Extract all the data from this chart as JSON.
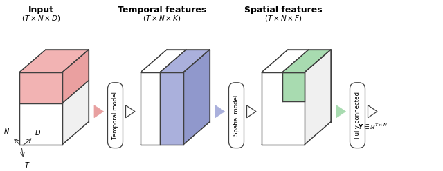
{
  "title_input": "\\textbf{Input}",
  "title_temporal": "\\textbf{Temporal features}",
  "title_spatial": "\\textbf{Spatial features}",
  "subtitle_input": "$(T \\times N \\times D)$",
  "subtitle_temporal": "$(T \\times N \\times K)$",
  "subtitle_spatial": "$(T \\times N \\times F)$",
  "label_temporal_model": "Temporal model",
  "label_spatial_model": "Spatial model",
  "label_fully_connected": "Fully connected",
  "label_output": "$\\mathbf{Y} \\in \\mathbb{R}^{T \\times N}$",
  "color_input_pink": "#f2b3b3",
  "color_input_pink_dark": "#eaa0a0",
  "color_temporal_blue": "#aab0dc",
  "color_temporal_blue_dark": "#9098cc",
  "color_spatial_green": "#a8dbb0",
  "color_spatial_green_dark": "#88c898",
  "color_arrow_pink": "#e8a0a0",
  "color_arrow_blue": "#aab0dc",
  "color_arrow_green": "#a8dbb0",
  "color_edge": "#404040",
  "color_edge_light": "#909090",
  "color_white": "#ffffff",
  "background": "#ffffff"
}
